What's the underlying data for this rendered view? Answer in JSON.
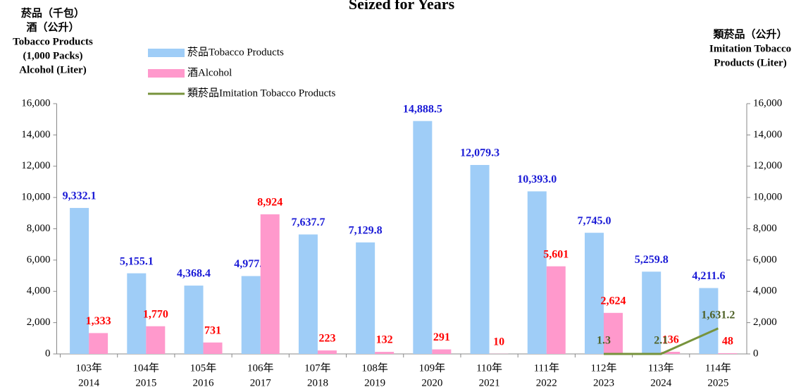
{
  "chart_data": {
    "type": "bar",
    "title": "Seized for Years",
    "y_axis_label": [
      "菸品（千包）",
      "酒（公升）",
      "Tobacco Products",
      "(1,000 Packs)",
      "Alcohol (Liter)"
    ],
    "y2_axis_label": [
      "類菸品（公升）",
      "Imitation Tobacco",
      "Products (Liter)"
    ],
    "categories": [
      [
        "103年",
        "2014"
      ],
      [
        "104年",
        "2015"
      ],
      [
        "105年",
        "2016"
      ],
      [
        "106年",
        "2017"
      ],
      [
        "107年",
        "2018"
      ],
      [
        "108年",
        "2019"
      ],
      [
        "109年",
        "2020"
      ],
      [
        "110年",
        "2021"
      ],
      [
        "111年",
        "2022"
      ],
      [
        "112年",
        "2023"
      ],
      [
        "113年",
        "2024"
      ],
      [
        "114年",
        "2025"
      ]
    ],
    "series": [
      {
        "name": "菸品Tobacco Products",
        "type": "bar",
        "color": "#9fcdf7",
        "label_color": "#1a1ad6",
        "values": [
          9332.1,
          5155.1,
          4368.4,
          4977.7,
          7637.7,
          7129.8,
          14888.5,
          12079.3,
          10393.0,
          7745.0,
          5259.8,
          4211.6
        ],
        "value_labels": [
          "9,332.1",
          "5,155.1",
          "4,368.4",
          "4,977.7",
          "7,637.7",
          "7,129.8",
          "14,888.5",
          "12,079.3",
          "10,393.0",
          "7,745.0",
          "5,259.8",
          "4,211.6"
        ]
      },
      {
        "name": "酒Alcohol",
        "type": "bar",
        "color": "#ff99cc",
        "label_color": "#ff0000",
        "values": [
          1333,
          1770,
          731,
          8924,
          223,
          132,
          291,
          10,
          5601,
          2624,
          136,
          48
        ],
        "value_labels": [
          "1,333",
          "1,770",
          "731",
          "8,924",
          "223",
          "132",
          "291",
          "10",
          "5,601",
          "2,624",
          "136",
          "48"
        ]
      },
      {
        "name": "類菸品Imitation Tobacco Products",
        "type": "line",
        "axis": "y2",
        "color": "#77933c",
        "label_color": "#4f6228",
        "values": [
          null,
          null,
          null,
          null,
          null,
          null,
          null,
          null,
          null,
          1.3,
          2.1,
          1631.2
        ],
        "value_labels": [
          null,
          null,
          null,
          null,
          null,
          null,
          null,
          null,
          null,
          "1.3",
          "2.1",
          "1,631.2"
        ]
      }
    ],
    "ylim": [
      0,
      16000
    ],
    "yticks": [
      0,
      {
        "value": 2000,
        "label": "2,000"
      },
      {
        "value": 4000,
        "label": "4,000"
      },
      {
        "value": 6000,
        "label": "6,000"
      },
      {
        "value": 8000,
        "label": "8,000"
      },
      {
        "value": 10000,
        "label": "10,000"
      },
      {
        "value": 12000,
        "label": "12,000"
      },
      {
        "value": 14000,
        "label": "14,000"
      },
      {
        "value": 16000,
        "label": "16,000"
      }
    ],
    "y2lim": [
      0,
      16000
    ],
    "y2ticks": [
      0,
      {
        "value": 2000,
        "label": "2,000"
      },
      {
        "value": 4000,
        "label": "4,000"
      },
      {
        "value": 6000,
        "label": "6,000"
      },
      {
        "value": 8000,
        "label": "8,000"
      },
      {
        "value": 10000,
        "label": "10,000"
      },
      {
        "value": 12000,
        "label": "12,000"
      },
      {
        "value": 14000,
        "label": "14,000"
      },
      {
        "value": 16000,
        "label": "16,000"
      }
    ],
    "grid": false,
    "legend": "top-left"
  }
}
